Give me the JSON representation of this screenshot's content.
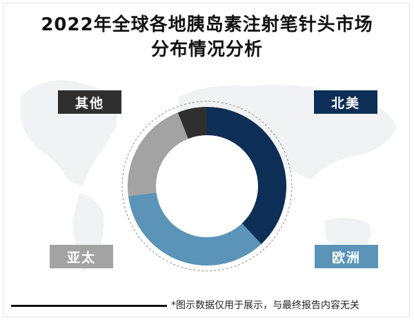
{
  "title": {
    "line1": "2022年全球各地胰岛素注射笔针头市场",
    "line2": "分布情况分析"
  },
  "chart_data": {
    "type": "pie",
    "style": "donut",
    "series": [
      {
        "label": "北美",
        "value": 38,
        "color": "#0d2e56"
      },
      {
        "label": "欧洲",
        "value": 35,
        "color": "#5b94b8"
      },
      {
        "label": "亚太",
        "value": 21,
        "color": "#a3a3a3"
      },
      {
        "label": "其他",
        "value": 6,
        "color": "#2f2f2f"
      }
    ]
  },
  "labels": {
    "north_america": "北美",
    "europe": "欧洲",
    "asia_pacific": "亚太",
    "other": "其他"
  },
  "footnote": "*图示数据仅用于展示，与最终报告内容无关"
}
